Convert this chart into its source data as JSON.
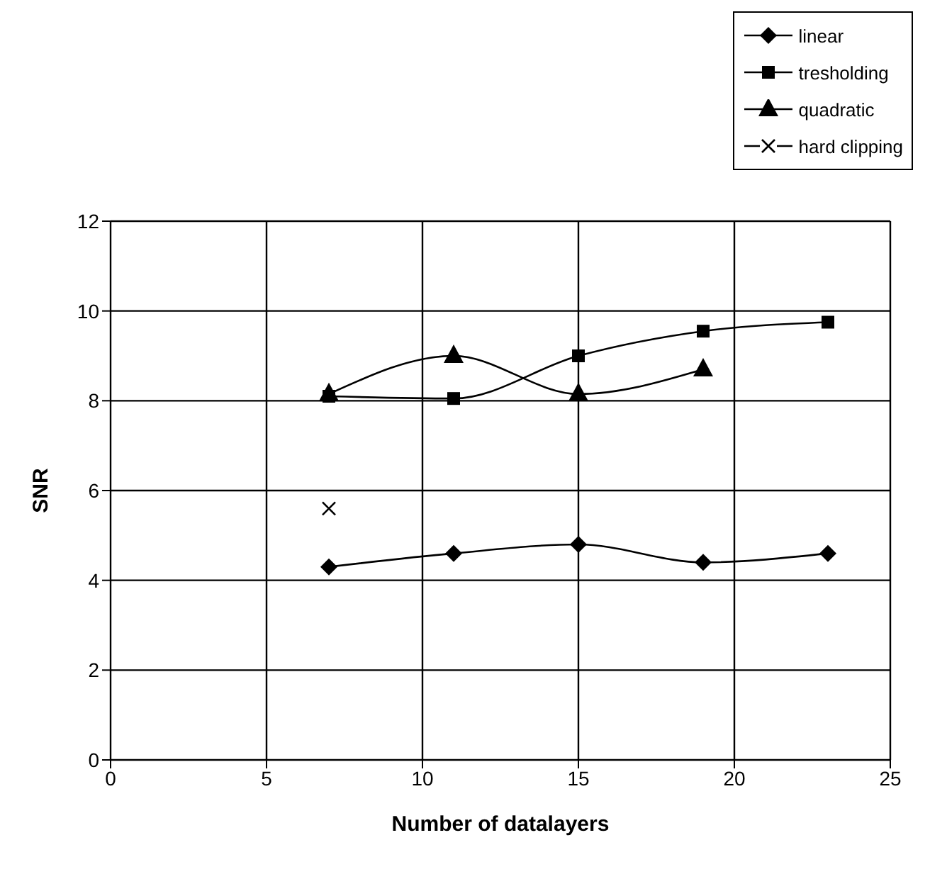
{
  "chart_data": {
    "type": "line",
    "xlabel": "Number of datalayers",
    "ylabel": "SNR",
    "xlim": [
      0,
      25
    ],
    "xticks": [
      0,
      5,
      10,
      15,
      20,
      25
    ],
    "ylim": [
      0,
      12
    ],
    "yticks": [
      0,
      2,
      4,
      6,
      8,
      10,
      12
    ],
    "grid": true,
    "legend": "top right",
    "line_style": "solid",
    "series": [
      {
        "name": "linear",
        "color": "#000000",
        "marker": "diamond",
        "x": [
          7,
          11,
          15,
          19,
          23
        ],
        "values": [
          4.3,
          4.6,
          4.8,
          4.4,
          4.6
        ]
      },
      {
        "name": "tresholding",
        "color": "#000000",
        "marker": "square",
        "x": [
          7,
          11,
          15,
          19,
          23
        ],
        "values": [
          8.1,
          8.05,
          9.0,
          9.55,
          9.75
        ]
      },
      {
        "name": "quadratic",
        "color": "#000000",
        "marker": "triangle",
        "x": [
          7,
          11,
          15,
          19
        ],
        "values": [
          8.15,
          9.0,
          8.15,
          8.7
        ]
      },
      {
        "name": "hard clipping",
        "color": "#000000",
        "marker": "cross",
        "x": [
          7
        ],
        "values": [
          5.6
        ]
      }
    ]
  }
}
